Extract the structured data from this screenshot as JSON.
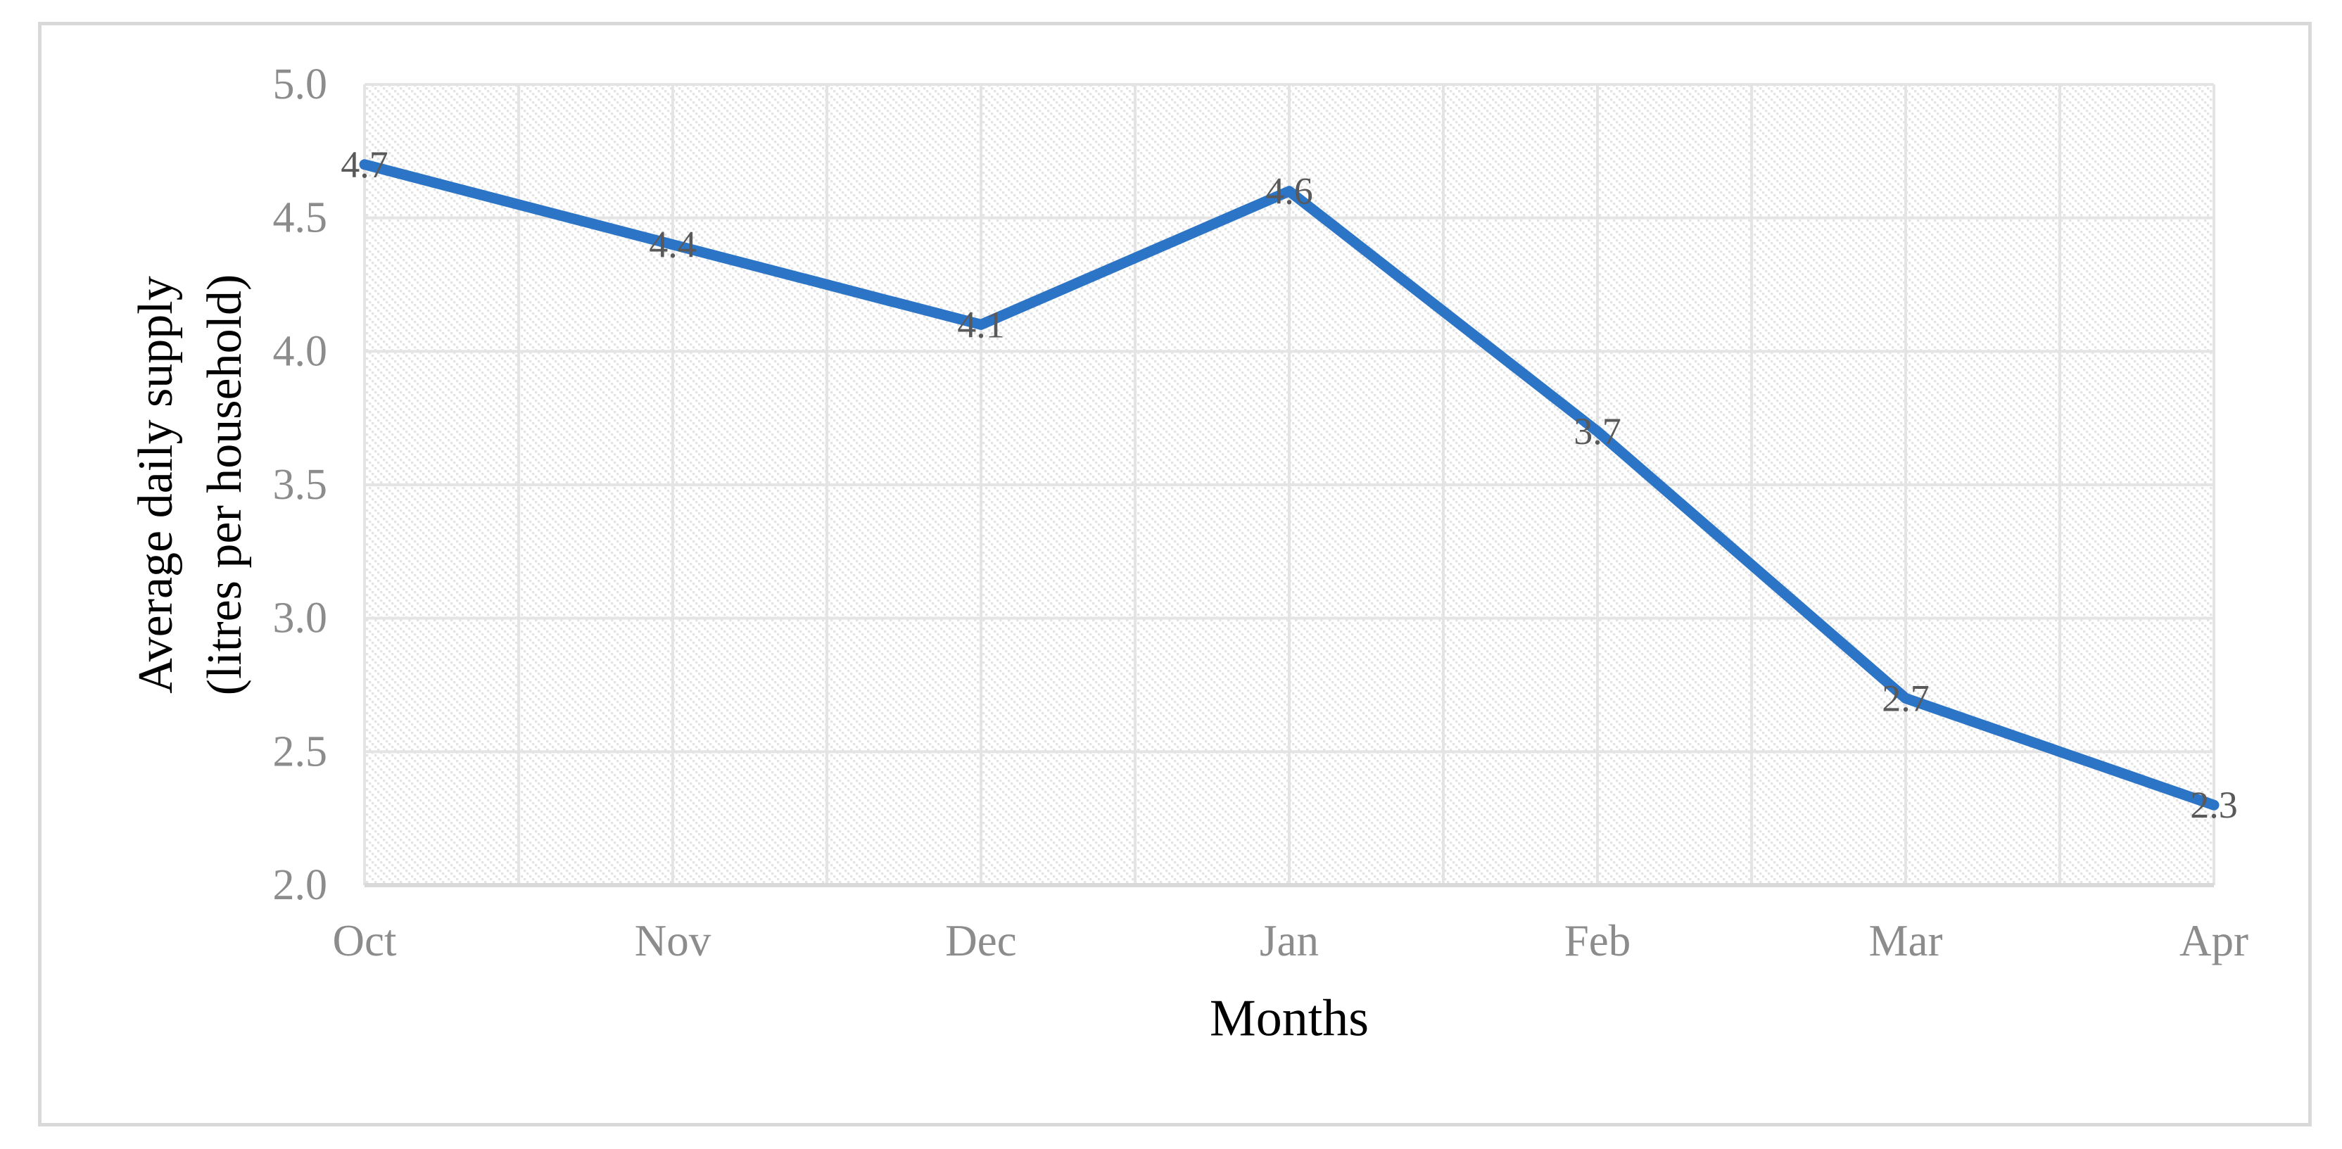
{
  "chart_data": {
    "type": "line",
    "categories": [
      "Oct",
      "Nov",
      "Dec",
      "Jan",
      "Feb",
      "Mar",
      "Apr"
    ],
    "values": [
      4.7,
      4.4,
      4.1,
      4.6,
      3.7,
      2.7,
      2.3
    ],
    "data_labels": [
      "4.7",
      "4.4",
      "4.1",
      "4.6",
      "3.7",
      "2.7",
      "2.3"
    ],
    "xlabel": "Months",
    "ylabel_line1": "Average daily supply",
    "ylabel_line2": "(litres per household)",
    "ylim": [
      2.0,
      5.0
    ],
    "ytick_step": 0.5,
    "ytick_labels": [
      "5.0",
      "4.5",
      "4.0",
      "3.5",
      "3.0",
      "2.5",
      "2.0"
    ],
    "legend": "none",
    "grid": "horizontal major every 0.5; vertical lines at categories and midpoints",
    "plot_fill": "light diagonal dotted hatch",
    "colors": {
      "line": "#2b74c6",
      "data_label": "#595959",
      "tick_label": "#8c8c8c",
      "axis_title": "#000000",
      "gridline": "#e4e4e4",
      "hatch_dot": "#e4e4e4",
      "axis_bottom": "#d9d9d9",
      "figure_border": "#d9d9d9"
    }
  }
}
